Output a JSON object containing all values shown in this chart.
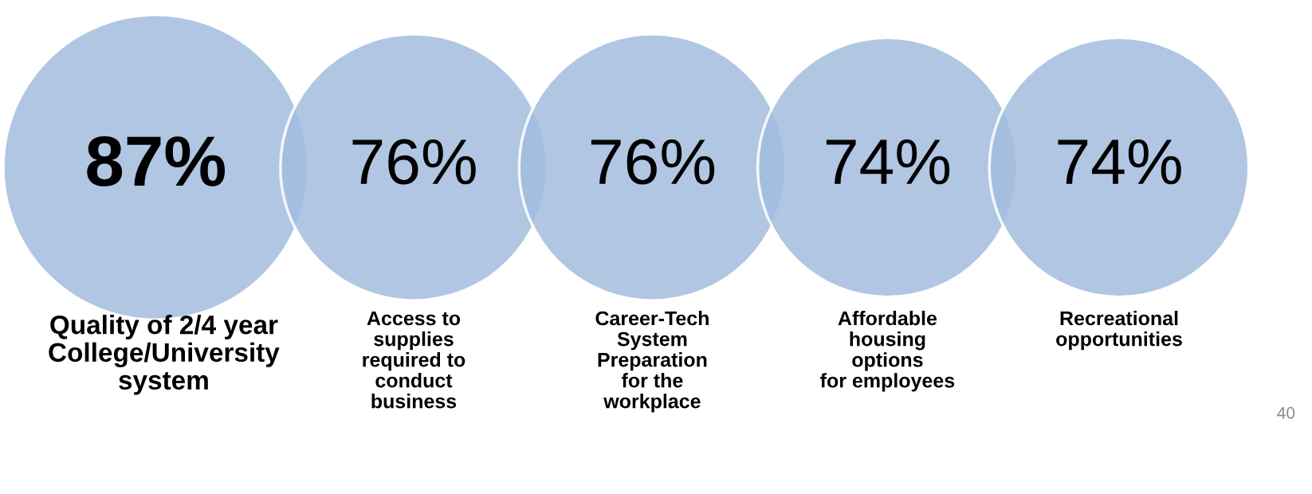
{
  "chart_data": {
    "type": "other",
    "categories": [
      "Quality of 2/4 year\nCollege/University\nsystem",
      "Access to\nsupplies\nrequired to\nconduct\nbusiness",
      "Career-Tech\nSystem\nPreparation\nfor the\nworkplace",
      "Affordable\nhousing\noptions\nfor employees",
      "Recreational\nopportunities"
    ],
    "values": [
      87,
      76,
      76,
      74,
      74
    ],
    "value_labels": [
      "87%",
      "76%",
      "76%",
      "74%",
      "74%"
    ],
    "color": "#a3bddf",
    "annotations": [
      "40"
    ]
  }
}
